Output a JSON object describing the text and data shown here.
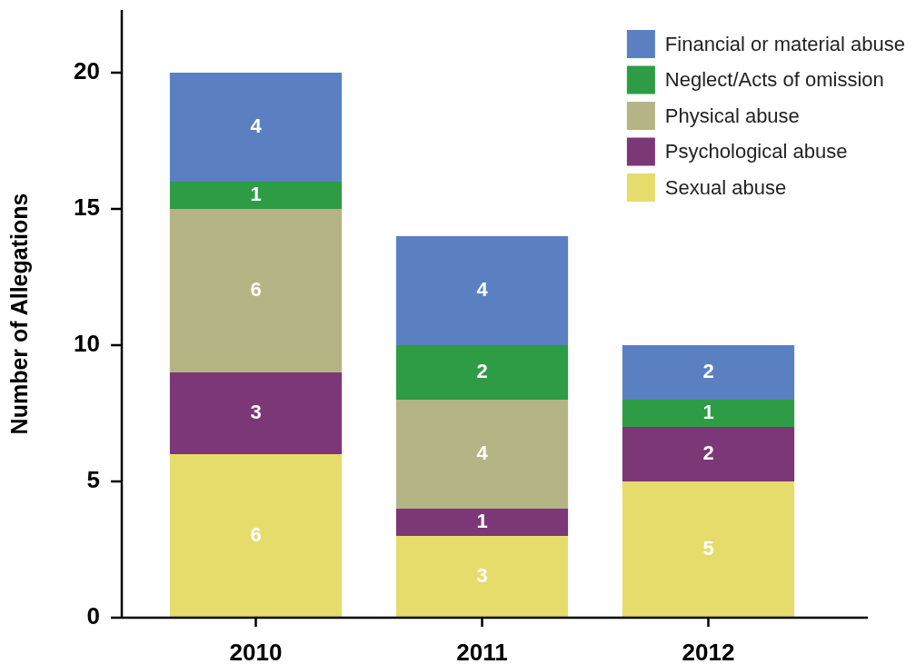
{
  "chart_data": {
    "type": "bar",
    "stacked": true,
    "ylabel": "Number of Allegations",
    "categories": [
      "2010",
      "2011",
      "2012"
    ],
    "series": [
      {
        "name": "Sexual abuse",
        "color": "#e6dc6c",
        "values": [
          6,
          3,
          5
        ]
      },
      {
        "name": "Psychological abuse",
        "color": "#7c3776",
        "values": [
          3,
          1,
          2
        ]
      },
      {
        "name": "Physical abuse",
        "color": "#b5b484",
        "values": [
          6,
          4,
          null
        ]
      },
      {
        "name": "Neglect/Acts of omission",
        "color": "#2d9c45",
        "values": [
          1,
          2,
          1
        ]
      },
      {
        "name": "Financial or material abuse",
        "color": "#5a80c2",
        "values": [
          4,
          4,
          2
        ]
      }
    ],
    "ylim": [
      0,
      22.3
    ],
    "yticks": [
      0,
      5,
      10,
      15,
      20
    ],
    "legend": "top right",
    "data_labels": true
  }
}
